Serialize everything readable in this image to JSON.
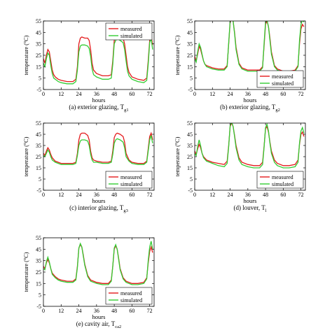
{
  "chart_data": [
    {
      "type": "line",
      "caption_main": "(a) exterior glazing, T",
      "caption_sub": "g1",
      "xlabel": "hours",
      "ylabel": "temperature (",
      "ylabel_sup": "o",
      "ylabel_unit": "C)",
      "xlim": [
        0,
        75
      ],
      "ylim": [
        -5,
        55
      ],
      "xticks": [
        0,
        12,
        24,
        36,
        48,
        60,
        72
      ],
      "yticks": [
        55,
        45,
        35,
        25,
        15,
        5,
        -5
      ],
      "legend_position": "top-right",
      "series": [
        {
          "name": "measured",
          "color": "#e41a1c",
          "x": [
            0,
            1,
            2,
            3,
            4,
            5,
            6,
            7,
            8,
            10,
            12,
            16,
            20,
            22,
            23,
            24,
            25,
            26,
            28,
            30,
            31,
            32,
            33,
            34,
            36,
            40,
            44,
            46,
            47,
            48,
            49,
            50,
            52,
            54,
            55,
            56,
            57,
            58,
            60,
            64,
            68,
            70,
            71,
            72,
            73,
            74
          ],
          "y": [
            22,
            18,
            25,
            30,
            28,
            20,
            12,
            8,
            6,
            4,
            3,
            2,
            2,
            4,
            15,
            35,
            40,
            41,
            40,
            40,
            38,
            30,
            18,
            12,
            9,
            7,
            7,
            8,
            20,
            38,
            41,
            42,
            41,
            40,
            35,
            25,
            15,
            10,
            6,
            4,
            3,
            5,
            20,
            38,
            42,
            34
          ]
        },
        {
          "name": "simulated",
          "color": "#33cc33",
          "x": [
            0,
            1,
            2,
            3,
            4,
            5,
            6,
            7,
            8,
            10,
            12,
            16,
            20,
            22,
            23,
            24,
            25,
            26,
            28,
            30,
            31,
            32,
            33,
            34,
            36,
            40,
            44,
            46,
            47,
            48,
            49,
            50,
            52,
            54,
            55,
            56,
            57,
            58,
            60,
            64,
            68,
            70,
            71,
            72,
            73,
            74
          ],
          "y": [
            18,
            15,
            22,
            27,
            25,
            16,
            9,
            5,
            4,
            2,
            1,
            0,
            0,
            2,
            12,
            28,
            33,
            34,
            34,
            33,
            31,
            24,
            13,
            8,
            6,
            4,
            4,
            5,
            17,
            35,
            38,
            40,
            38,
            36,
            30,
            20,
            11,
            7,
            4,
            2,
            1,
            3,
            17,
            36,
            40,
            30
          ]
        }
      ]
    },
    {
      "type": "line",
      "caption_main": "(b) exterior glazing, T",
      "caption_sub": "g2",
      "xlabel": "hours",
      "ylabel": "temperature (",
      "ylabel_sup": "o",
      "ylabel_unit": "C)",
      "xlim": [
        0,
        75
      ],
      "ylim": [
        -5,
        55
      ],
      "xticks": [
        0,
        12,
        24,
        36,
        48,
        60,
        72
      ],
      "yticks": [
        55,
        45,
        35,
        25,
        15,
        5,
        -5
      ],
      "legend_position": "bottom-right",
      "series": [
        {
          "name": "measured",
          "color": "#e41a1c",
          "x": [
            0,
            1,
            2,
            3,
            4,
            5,
            6,
            7,
            8,
            10,
            12,
            16,
            20,
            22,
            23,
            24,
            25,
            26,
            27,
            28,
            30,
            32,
            36,
            40,
            44,
            46,
            47,
            48,
            49,
            50,
            51,
            52,
            54,
            56,
            60,
            64,
            68,
            70,
            71,
            72,
            73,
            74
          ],
          "y": [
            24,
            20,
            26,
            33,
            30,
            25,
            20,
            17,
            16,
            15,
            14,
            13,
            13,
            16,
            35,
            54,
            57,
            55,
            45,
            32,
            18,
            14,
            12,
            12,
            12,
            15,
            33,
            52,
            55,
            50,
            40,
            28,
            16,
            13,
            11,
            11,
            12,
            16,
            35,
            48,
            52,
            50
          ]
        },
        {
          "name": "simulated",
          "color": "#33cc33",
          "x": [
            0,
            1,
            2,
            3,
            4,
            5,
            6,
            7,
            8,
            10,
            12,
            16,
            20,
            22,
            23,
            24,
            25,
            26,
            27,
            28,
            30,
            32,
            36,
            40,
            44,
            46,
            47,
            48,
            49,
            50,
            51,
            52,
            54,
            56,
            60,
            64,
            68,
            70,
            71,
            72,
            73,
            74
          ],
          "y": [
            22,
            19,
            28,
            35,
            32,
            26,
            20,
            17,
            15,
            14,
            13,
            12,
            12,
            15,
            36,
            55,
            58,
            55,
            44,
            30,
            17,
            13,
            11,
            11,
            11,
            14,
            35,
            54,
            56,
            50,
            38,
            26,
            15,
            12,
            10,
            10,
            11,
            15,
            38,
            52,
            56,
            54
          ]
        }
      ]
    },
    {
      "type": "line",
      "caption_main": "(c) interior glazing, T",
      "caption_sub": "g3",
      "xlabel": "hours",
      "ylabel": "temperature (",
      "ylabel_sup": "o",
      "ylabel_unit": "C)",
      "xlim": [
        0,
        75
      ],
      "ylim": [
        -5,
        55
      ],
      "xticks": [
        0,
        12,
        24,
        36,
        48,
        60,
        72
      ],
      "yticks": [
        55,
        45,
        35,
        25,
        15,
        5,
        -5
      ],
      "legend_position": "bottom-right",
      "series": [
        {
          "name": "measured",
          "color": "#e41a1c",
          "x": [
            0,
            1,
            2,
            3,
            4,
            5,
            6,
            8,
            10,
            12,
            16,
            20,
            22,
            23,
            24,
            25,
            26,
            28,
            30,
            31,
            32,
            33,
            34,
            36,
            40,
            44,
            46,
            47,
            48,
            49,
            50,
            52,
            54,
            55,
            56,
            58,
            60,
            64,
            68,
            70,
            71,
            72,
            73,
            74
          ],
          "y": [
            28,
            26,
            30,
            33,
            31,
            27,
            24,
            21,
            20,
            19,
            19,
            19,
            20,
            28,
            40,
            45,
            46,
            46,
            44,
            40,
            30,
            24,
            22,
            21,
            20,
            20,
            21,
            30,
            42,
            45,
            46,
            45,
            43,
            38,
            28,
            22,
            20,
            19,
            19,
            21,
            32,
            43,
            46,
            40
          ]
        },
        {
          "name": "simulated",
          "color": "#33cc33",
          "x": [
            0,
            1,
            2,
            3,
            4,
            5,
            6,
            8,
            10,
            12,
            16,
            20,
            22,
            23,
            24,
            25,
            26,
            28,
            30,
            31,
            32,
            33,
            34,
            36,
            40,
            44,
            46,
            47,
            48,
            49,
            50,
            52,
            54,
            55,
            56,
            58,
            60,
            64,
            68,
            70,
            71,
            72,
            73,
            74
          ],
          "y": [
            26,
            25,
            28,
            31,
            29,
            25,
            22,
            20,
            19,
            18,
            18,
            18,
            19,
            26,
            35,
            39,
            40,
            40,
            39,
            35,
            27,
            22,
            20,
            20,
            19,
            19,
            20,
            27,
            37,
            40,
            41,
            40,
            38,
            33,
            25,
            21,
            19,
            18,
            18,
            20,
            30,
            40,
            44,
            37
          ]
        }
      ]
    },
    {
      "type": "line",
      "caption_main": "(d) louver, T",
      "caption_sub": "l",
      "xlabel": "hours",
      "ylabel": "temperature (",
      "ylabel_sup": "o",
      "ylabel_unit": "C)",
      "xlim": [
        0,
        75
      ],
      "ylim": [
        -5,
        55
      ],
      "xticks": [
        0,
        12,
        24,
        36,
        48,
        60,
        72
      ],
      "yticks": [
        55,
        45,
        35,
        25,
        15,
        5,
        -5
      ],
      "legend_position": "bottom-right",
      "series": [
        {
          "name": "measured",
          "color": "#e41a1c",
          "x": [
            0,
            1,
            2,
            3,
            4,
            5,
            6,
            8,
            10,
            12,
            16,
            20,
            22,
            23,
            24,
            25,
            26,
            27,
            28,
            30,
            32,
            36,
            40,
            44,
            46,
            47,
            48,
            49,
            50,
            51,
            52,
            54,
            56,
            60,
            64,
            68,
            70,
            71,
            72,
            73,
            74
          ],
          "y": [
            30,
            27,
            32,
            36,
            33,
            28,
            25,
            22,
            21,
            20,
            19,
            18,
            21,
            35,
            52,
            55,
            52,
            44,
            35,
            24,
            20,
            18,
            17,
            17,
            20,
            34,
            50,
            52,
            47,
            38,
            30,
            22,
            19,
            17,
            17,
            18,
            22,
            36,
            45,
            47,
            43
          ]
        },
        {
          "name": "simulated",
          "color": "#33cc33",
          "x": [
            0,
            1,
            2,
            3,
            4,
            5,
            6,
            8,
            10,
            12,
            16,
            20,
            22,
            23,
            24,
            25,
            26,
            27,
            28,
            30,
            32,
            36,
            40,
            44,
            46,
            47,
            48,
            49,
            50,
            51,
            52,
            54,
            56,
            60,
            64,
            68,
            70,
            71,
            72,
            73,
            74
          ],
          "y": [
            28,
            26,
            34,
            40,
            35,
            28,
            24,
            21,
            20,
            19,
            17,
            16,
            19,
            34,
            53,
            56,
            52,
            43,
            33,
            22,
            18,
            16,
            15,
            15,
            18,
            33,
            51,
            54,
            48,
            37,
            28,
            20,
            17,
            15,
            15,
            16,
            20,
            37,
            48,
            51,
            46
          ]
        }
      ]
    },
    {
      "type": "line",
      "caption_main": "(e) cavity air, T",
      "caption_sub": "ca2",
      "xlabel": "hours",
      "ylabel": "temperature (",
      "ylabel_sup": "o",
      "ylabel_unit": "C)",
      "xlim": [
        0,
        75
      ],
      "ylim": [
        -5,
        55
      ],
      "xticks": [
        0,
        12,
        24,
        36,
        48,
        60,
        72
      ],
      "yticks": [
        55,
        45,
        35,
        25,
        15,
        5,
        -5
      ],
      "legend_position": "bottom-right",
      "series": [
        {
          "name": "measured",
          "color": "#e41a1c",
          "x": [
            0,
            1,
            2,
            3,
            4,
            5,
            6,
            8,
            10,
            12,
            16,
            20,
            22,
            23,
            24,
            25,
            26,
            27,
            28,
            30,
            32,
            36,
            40,
            44,
            46,
            47,
            48,
            49,
            50,
            51,
            52,
            54,
            56,
            60,
            64,
            68,
            70,
            71,
            72,
            73,
            74
          ],
          "y": [
            30,
            28,
            33,
            36,
            33,
            28,
            24,
            21,
            19,
            18,
            17,
            17,
            19,
            30,
            46,
            49,
            47,
            40,
            32,
            22,
            18,
            16,
            15,
            15,
            18,
            30,
            45,
            48,
            45,
            37,
            28,
            20,
            17,
            15,
            15,
            16,
            20,
            33,
            43,
            47,
            42
          ]
        },
        {
          "name": "simulated",
          "color": "#33cc33",
          "x": [
            0,
            1,
            2,
            3,
            4,
            5,
            6,
            8,
            10,
            12,
            16,
            20,
            22,
            23,
            24,
            25,
            26,
            27,
            28,
            30,
            32,
            36,
            40,
            44,
            46,
            47,
            48,
            49,
            50,
            51,
            52,
            54,
            56,
            60,
            64,
            68,
            70,
            71,
            72,
            73,
            74
          ],
          "y": [
            28,
            27,
            34,
            38,
            34,
            28,
            23,
            20,
            18,
            17,
            16,
            16,
            18,
            29,
            46,
            50,
            47,
            39,
            31,
            21,
            17,
            15,
            14,
            14,
            17,
            30,
            46,
            49,
            45,
            36,
            27,
            19,
            16,
            14,
            14,
            15,
            19,
            35,
            47,
            52,
            45
          ]
        }
      ]
    }
  ]
}
